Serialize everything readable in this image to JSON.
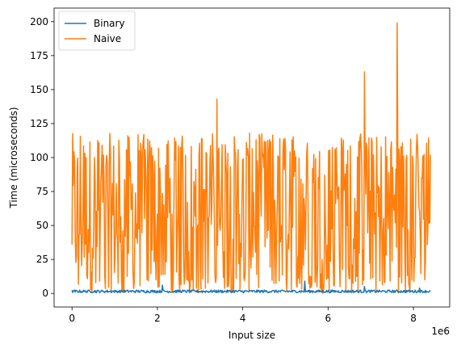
{
  "chart_data": {
    "type": "line",
    "title": "",
    "xlabel": "Input size",
    "ylabel": "Time (microseconds)",
    "x_offset_label": "1e6",
    "xlim": [
      -0.42,
      8.85
    ],
    "ylim": [
      -10,
      210
    ],
    "xticks": [
      0,
      2,
      4,
      6,
      8
    ],
    "xtick_labels": [
      "0",
      "2",
      "4",
      "6",
      "8"
    ],
    "yticks": [
      0,
      25,
      50,
      75,
      100,
      125,
      150,
      175,
      200
    ],
    "ytick_labels": [
      "0",
      "25",
      "50",
      "75",
      "100",
      "125",
      "150",
      "175",
      "200"
    ],
    "grid": false,
    "legend_position": "top-left",
    "x_range": [
      0,
      8.4
    ],
    "series": [
      {
        "name": "Binary",
        "color": "#1f77b4",
        "typical_range": [
          0.5,
          2.5
        ],
        "peaks": [
          [
            2.12,
            6
          ],
          [
            5.45,
            9
          ],
          [
            6.85,
            5
          ],
          [
            8.15,
            4
          ]
        ]
      },
      {
        "name": "Naive",
        "color": "#ff7f0e",
        "typical_range": [
          0,
          118
        ],
        "peaks": [
          [
            3.4,
            143
          ],
          [
            6.85,
            163
          ],
          [
            7.62,
            199
          ]
        ]
      }
    ]
  }
}
